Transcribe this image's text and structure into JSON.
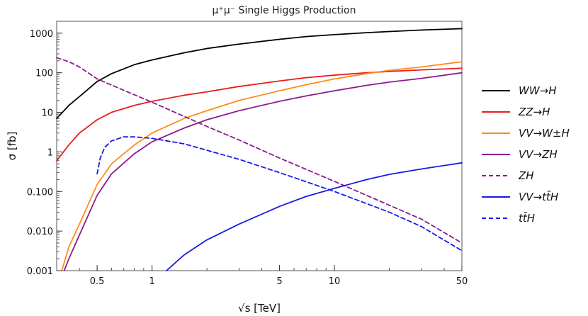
{
  "chart_data": {
    "type": "line",
    "title": "μ⁺μ⁻ Single Higgs Production",
    "xlabel": "√s [TeV]",
    "ylabel": "σ [fb]",
    "xscale": "log",
    "yscale": "log",
    "xlim": [
      0.3,
      50
    ],
    "ylim": [
      0.001,
      2000
    ],
    "xticks": [
      {
        "value": 0.5,
        "label": "0.5"
      },
      {
        "value": 1,
        "label": "1"
      },
      {
        "value": 5,
        "label": "5"
      },
      {
        "value": 10,
        "label": "10"
      },
      {
        "value": 50,
        "label": "50"
      }
    ],
    "yticks": [
      {
        "value": 0.001,
        "label": "0.001"
      },
      {
        "value": 0.01,
        "label": "0.010"
      },
      {
        "value": 0.1,
        "label": "0.100"
      },
      {
        "value": 1,
        "label": "1"
      },
      {
        "value": 10,
        "label": "10"
      },
      {
        "value": 100,
        "label": "100"
      },
      {
        "value": 1000,
        "label": "1000"
      }
    ],
    "grid": false,
    "legend_position": "right",
    "series": [
      {
        "name": "WW→H",
        "color": "#000000",
        "dash": false,
        "x": [
          0.3,
          0.35,
          0.4,
          0.5,
          0.6,
          0.8,
          1,
          1.5,
          2,
          3,
          5,
          7,
          10,
          15,
          20,
          30,
          50
        ],
        "y": [
          7,
          15,
          25,
          60,
          95,
          160,
          210,
          320,
          410,
          530,
          700,
          820,
          920,
          1030,
          1100,
          1200,
          1300
        ]
      },
      {
        "name": "ZZ→H",
        "color": "#e81c1c",
        "dash": false,
        "x": [
          0.3,
          0.35,
          0.4,
          0.5,
          0.6,
          0.8,
          1,
          1.5,
          2,
          3,
          5,
          7,
          10,
          15,
          20,
          30,
          50
        ],
        "y": [
          0.6,
          1.5,
          3,
          6.5,
          10,
          15,
          19,
          27,
          33,
          45,
          62,
          75,
          87,
          100,
          108,
          118,
          130
        ]
      },
      {
        "name": "VV→W±H",
        "color": "#ff8c1a",
        "dash": false,
        "x": [
          0.32,
          0.35,
          0.4,
          0.5,
          0.6,
          0.8,
          1,
          1.5,
          2,
          3,
          5,
          7,
          10,
          15,
          20,
          30,
          50
        ],
        "y": [
          0.001,
          0.004,
          0.015,
          0.15,
          0.5,
          1.5,
          3,
          7,
          11,
          20,
          35,
          50,
          70,
          95,
          115,
          140,
          190
        ]
      },
      {
        "name": "VV→ZH",
        "color": "#8b1b8f",
        "dash": false,
        "x": [
          0.33,
          0.35,
          0.4,
          0.5,
          0.6,
          0.8,
          1,
          1.5,
          2,
          3,
          5,
          7,
          10,
          15,
          20,
          30,
          50
        ],
        "y": [
          0.001,
          0.002,
          0.008,
          0.08,
          0.28,
          0.9,
          1.8,
          4,
          6.5,
          11,
          19,
          26,
          35,
          48,
          58,
          72,
          100
        ]
      },
      {
        "name": "ZH",
        "color": "#8b1b8f",
        "dash": true,
        "x": [
          0.3,
          0.35,
          0.4,
          0.5,
          0.7,
          1,
          2,
          3,
          5,
          10,
          20,
          30,
          50
        ],
        "y": [
          240,
          190,
          140,
          70,
          36,
          18,
          4.4,
          2,
          0.7,
          0.18,
          0.045,
          0.02,
          0.005
        ]
      },
      {
        "name": "VV→tt̄H",
        "color": "#1a1ae6",
        "dash": false,
        "x": [
          1.2,
          1.5,
          2,
          3,
          5,
          7,
          10,
          15,
          20,
          30,
          50
        ],
        "y": [
          0.001,
          0.0025,
          0.006,
          0.015,
          0.042,
          0.075,
          0.12,
          0.2,
          0.27,
          0.37,
          0.53
        ]
      },
      {
        "name": "tt̄H",
        "color": "#1a1ae6",
        "dash": true,
        "x": [
          0.5,
          0.52,
          0.55,
          0.6,
          0.7,
          0.8,
          1,
          1.5,
          2,
          3,
          5,
          10,
          20,
          30,
          50
        ],
        "y": [
          0.28,
          0.7,
          1.3,
          1.9,
          2.4,
          2.4,
          2.2,
          1.6,
          1.1,
          0.65,
          0.3,
          0.1,
          0.03,
          0.013,
          0.0032
        ]
      }
    ]
  }
}
